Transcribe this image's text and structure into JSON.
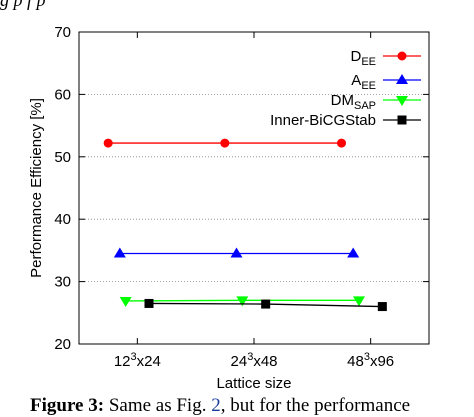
{
  "top_caption": "g   p              f         p",
  "caption": {
    "label": "Figure 3:",
    "text_before": " Same as Fig. ",
    "ref": "2",
    "text_after": ", but for the performance"
  },
  "chart_data": {
    "type": "line",
    "xlabel": "Lattice size",
    "ylabel": "Performance Efficiency [%]",
    "categories": [
      "12³x24",
      "24³x48",
      "48³x96"
    ],
    "category_parts": [
      {
        "base": "12",
        "sup": "3",
        "rest": "x24"
      },
      {
        "base": "24",
        "sup": "3",
        "rest": "x48"
      },
      {
        "base": "48",
        "sup": "3",
        "rest": "x96"
      }
    ],
    "ylim": [
      20,
      70
    ],
    "yticks": [
      20,
      30,
      40,
      50,
      60,
      70
    ],
    "grid": "horizontal dotted",
    "legend_position": "top-right",
    "series": [
      {
        "name": "D_EE",
        "label_main": "D",
        "label_sub": "EE",
        "color": "#ff0000",
        "marker": "circle",
        "offset": -0.25,
        "values": [
          52.2,
          52.2,
          52.2
        ]
      },
      {
        "name": "A_EE",
        "label_main": "A",
        "label_sub": "EE",
        "color": "#0000ff",
        "marker": "triangle-up",
        "offset": -0.15,
        "values": [
          34.5,
          34.5,
          34.5
        ]
      },
      {
        "name": "DM_SAP",
        "label_main": "DM",
        "label_sub": "SAP",
        "color": "#00ff00",
        "marker": "triangle-down",
        "offset": -0.1,
        "values": [
          26.9,
          27.0,
          27.0
        ]
      },
      {
        "name": "Inner-BiCGStab",
        "label_main": "Inner-BiCGStab",
        "label_sub": "",
        "color": "#000000",
        "marker": "square",
        "offset": 0.1,
        "values": [
          26.5,
          26.4,
          26.0
        ]
      }
    ]
  }
}
